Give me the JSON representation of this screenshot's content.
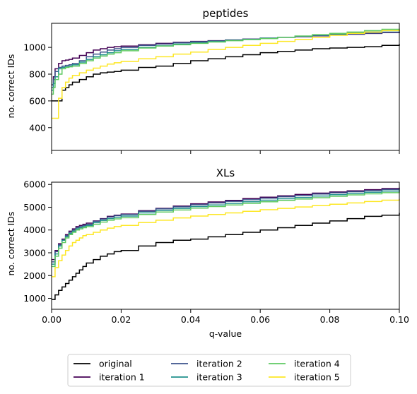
{
  "colors": {
    "original": "#000000",
    "iteration 1": "#440154",
    "iteration 2": "#3b528b",
    "iteration 3": "#21908d",
    "iteration 4": "#5ec962",
    "iteration 5": "#fde725"
  },
  "legend": {
    "placement": "bottom-center",
    "ncol": 3,
    "entries": [
      "original",
      "iteration 1",
      "iteration 2",
      "iteration 3",
      "iteration 4",
      "iteration 5"
    ]
  },
  "chart_data": [
    {
      "type": "line",
      "step": true,
      "title": "peptides",
      "xlabel": "",
      "ylabel": "no. correct IDs",
      "xlim": [
        0,
        0.1
      ],
      "ylim": [
        230,
        1180
      ],
      "xticks": [
        0,
        0.02,
        0.04,
        0.06,
        0.08,
        0.1
      ],
      "xtick_labels_shown": false,
      "yticks": [
        400,
        600,
        800,
        1000
      ],
      "ytick_labels": [
        "400",
        "600",
        "800",
        "1000"
      ],
      "grid": false,
      "series": [
        {
          "name": "original",
          "x": [
            0,
            0.001,
            0.002,
            0.003,
            0.004,
            0.005,
            0.006,
            0.008,
            0.01,
            0.012,
            0.014,
            0.016,
            0.018,
            0.02,
            0.025,
            0.03,
            0.035,
            0.04,
            0.045,
            0.05,
            0.055,
            0.06,
            0.065,
            0.07,
            0.075,
            0.08,
            0.085,
            0.09,
            0.095,
            0.1
          ],
          "y": [
            600,
            600,
            600,
            680,
            700,
            720,
            740,
            760,
            780,
            800,
            810,
            815,
            820,
            830,
            850,
            860,
            880,
            900,
            915,
            930,
            945,
            960,
            970,
            980,
            990,
            995,
            1000,
            1005,
            1015,
            1025
          ]
        },
        {
          "name": "iteration 1",
          "x": [
            0,
            0.0005,
            0.001,
            0.002,
            0.003,
            0.004,
            0.005,
            0.006,
            0.008,
            0.01,
            0.012,
            0.014,
            0.016,
            0.018,
            0.02,
            0.025,
            0.03,
            0.035,
            0.04,
            0.045,
            0.05,
            0.055,
            0.06,
            0.065,
            0.07,
            0.075,
            0.08,
            0.085,
            0.09,
            0.095,
            0.1
          ],
          "y": [
            720,
            780,
            840,
            880,
            900,
            905,
            910,
            920,
            940,
            960,
            980,
            990,
            1000,
            1005,
            1010,
            1020,
            1030,
            1038,
            1045,
            1050,
            1055,
            1062,
            1068,
            1075,
            1080,
            1086,
            1092,
            1098,
            1104,
            1110,
            1115
          ]
        },
        {
          "name": "iteration 2",
          "x": [
            0,
            0.0005,
            0.001,
            0.002,
            0.003,
            0.004,
            0.005,
            0.006,
            0.008,
            0.01,
            0.012,
            0.014,
            0.016,
            0.018,
            0.02,
            0.025,
            0.03,
            0.035,
            0.04,
            0.045,
            0.05,
            0.055,
            0.06,
            0.065,
            0.07,
            0.075,
            0.08,
            0.085,
            0.09,
            0.095,
            0.1
          ],
          "y": [
            700,
            760,
            820,
            850,
            860,
            865,
            870,
            880,
            900,
            930,
            950,
            965,
            980,
            990,
            1000,
            1015,
            1025,
            1035,
            1042,
            1048,
            1055,
            1062,
            1070,
            1076,
            1082,
            1088,
            1095,
            1100,
            1106,
            1112,
            1118
          ]
        },
        {
          "name": "iteration 3",
          "x": [
            0,
            0.0005,
            0.001,
            0.002,
            0.003,
            0.004,
            0.005,
            0.006,
            0.008,
            0.01,
            0.012,
            0.014,
            0.016,
            0.018,
            0.02,
            0.025,
            0.03,
            0.035,
            0.04,
            0.045,
            0.05,
            0.055,
            0.06,
            0.065,
            0.07,
            0.075,
            0.08,
            0.085,
            0.09,
            0.095,
            0.1
          ],
          "y": [
            680,
            730,
            780,
            840,
            850,
            855,
            860,
            870,
            890,
            910,
            930,
            945,
            960,
            975,
            985,
            1000,
            1012,
            1025,
            1035,
            1045,
            1052,
            1060,
            1068,
            1076,
            1084,
            1092,
            1100,
            1108,
            1116,
            1124,
            1130
          ]
        },
        {
          "name": "iteration 4",
          "x": [
            0,
            0.0005,
            0.001,
            0.002,
            0.003,
            0.004,
            0.005,
            0.006,
            0.008,
            0.01,
            0.012,
            0.014,
            0.016,
            0.018,
            0.02,
            0.025,
            0.03,
            0.035,
            0.04,
            0.045,
            0.05,
            0.055,
            0.06,
            0.065,
            0.07,
            0.075,
            0.08,
            0.085,
            0.09,
            0.095,
            0.1
          ],
          "y": [
            650,
            700,
            760,
            800,
            840,
            850,
            855,
            860,
            880,
            900,
            920,
            935,
            950,
            960,
            975,
            995,
            1010,
            1020,
            1030,
            1040,
            1050,
            1058,
            1066,
            1075,
            1085,
            1095,
            1105,
            1115,
            1125,
            1135,
            1140
          ]
        },
        {
          "name": "iteration 5",
          "x": [
            0,
            0.0005,
            0.001,
            0.002,
            0.003,
            0.004,
            0.005,
            0.006,
            0.008,
            0.01,
            0.012,
            0.014,
            0.016,
            0.018,
            0.02,
            0.025,
            0.03,
            0.035,
            0.04,
            0.045,
            0.05,
            0.055,
            0.06,
            0.065,
            0.07,
            0.075,
            0.08,
            0.085,
            0.09,
            0.095,
            0.1
          ],
          "y": [
            470,
            470,
            470,
            620,
            700,
            740,
            770,
            790,
            810,
            830,
            845,
            860,
            875,
            885,
            895,
            915,
            930,
            950,
            965,
            985,
            1000,
            1015,
            1030,
            1045,
            1060,
            1075,
            1090,
            1105,
            1115,
            1125,
            1135
          ]
        }
      ]
    },
    {
      "type": "line",
      "step": true,
      "title": "XLs",
      "xlabel": "q-value",
      "ylabel": "no. correct IDs",
      "xlim": [
        0,
        0.1
      ],
      "ylim": [
        520,
        6100
      ],
      "xticks": [
        0,
        0.02,
        0.04,
        0.06,
        0.08,
        0.1
      ],
      "xtick_labels": [
        "0.00",
        "0.02",
        "0.04",
        "0.06",
        "0.08",
        "0.10"
      ],
      "yticks": [
        1000,
        2000,
        3000,
        4000,
        5000,
        6000
      ],
      "ytick_labels": [
        "1000",
        "2000",
        "3000",
        "4000",
        "5000",
        "6000"
      ],
      "grid": false,
      "series": [
        {
          "name": "original",
          "x": [
            0,
            0.001,
            0.002,
            0.003,
            0.004,
            0.005,
            0.006,
            0.007,
            0.008,
            0.009,
            0.01,
            0.012,
            0.014,
            0.016,
            0.018,
            0.02,
            0.025,
            0.03,
            0.035,
            0.04,
            0.045,
            0.05,
            0.055,
            0.06,
            0.065,
            0.07,
            0.075,
            0.08,
            0.085,
            0.09,
            0.095,
            0.1
          ],
          "y": [
            950,
            1150,
            1350,
            1500,
            1650,
            1800,
            1950,
            2100,
            2250,
            2400,
            2550,
            2700,
            2850,
            2950,
            3050,
            3100,
            3300,
            3450,
            3550,
            3600,
            3700,
            3800,
            3900,
            4000,
            4100,
            4200,
            4300,
            4400,
            4500,
            4600,
            4650,
            4750
          ]
        },
        {
          "name": "iteration 1",
          "x": [
            0,
            0.001,
            0.002,
            0.003,
            0.004,
            0.005,
            0.006,
            0.007,
            0.008,
            0.009,
            0.01,
            0.012,
            0.014,
            0.016,
            0.018,
            0.02,
            0.025,
            0.03,
            0.035,
            0.04,
            0.045,
            0.05,
            0.055,
            0.06,
            0.065,
            0.07,
            0.075,
            0.08,
            0.085,
            0.09,
            0.095,
            0.1
          ],
          "y": [
            2700,
            3100,
            3400,
            3600,
            3800,
            3950,
            4050,
            4150,
            4200,
            4250,
            4300,
            4400,
            4500,
            4600,
            4650,
            4700,
            4850,
            4950,
            5050,
            5150,
            5230,
            5300,
            5380,
            5440,
            5500,
            5560,
            5620,
            5670,
            5720,
            5770,
            5820,
            5860
          ]
        },
        {
          "name": "iteration 2",
          "x": [
            0,
            0.001,
            0.002,
            0.003,
            0.004,
            0.005,
            0.006,
            0.007,
            0.008,
            0.009,
            0.01,
            0.012,
            0.014,
            0.016,
            0.018,
            0.02,
            0.025,
            0.03,
            0.035,
            0.04,
            0.045,
            0.05,
            0.055,
            0.06,
            0.065,
            0.07,
            0.075,
            0.08,
            0.085,
            0.09,
            0.095,
            0.1
          ],
          "y": [
            2600,
            3050,
            3350,
            3550,
            3750,
            3900,
            4000,
            4100,
            4150,
            4200,
            4250,
            4380,
            4480,
            4570,
            4630,
            4680,
            4820,
            4930,
            5020,
            5110,
            5190,
            5260,
            5330,
            5400,
            5460,
            5520,
            5580,
            5630,
            5680,
            5730,
            5780,
            5820
          ]
        },
        {
          "name": "iteration 3",
          "x": [
            0,
            0.001,
            0.002,
            0.003,
            0.004,
            0.005,
            0.006,
            0.007,
            0.008,
            0.009,
            0.01,
            0.012,
            0.014,
            0.016,
            0.018,
            0.02,
            0.025,
            0.03,
            0.035,
            0.04,
            0.045,
            0.05,
            0.055,
            0.06,
            0.065,
            0.07,
            0.075,
            0.08,
            0.085,
            0.09,
            0.095,
            0.1
          ],
          "y": [
            2500,
            2950,
            3300,
            3550,
            3700,
            3850,
            3950,
            4050,
            4100,
            4150,
            4200,
            4320,
            4420,
            4500,
            4560,
            4610,
            4750,
            4860,
            4950,
            5030,
            5100,
            5170,
            5240,
            5310,
            5370,
            5430,
            5490,
            5550,
            5610,
            5660,
            5710,
            5760
          ]
        },
        {
          "name": "iteration 4",
          "x": [
            0,
            0.001,
            0.002,
            0.003,
            0.004,
            0.005,
            0.006,
            0.007,
            0.008,
            0.009,
            0.01,
            0.012,
            0.014,
            0.016,
            0.018,
            0.02,
            0.025,
            0.03,
            0.035,
            0.04,
            0.045,
            0.05,
            0.055,
            0.06,
            0.065,
            0.07,
            0.075,
            0.08,
            0.085,
            0.09,
            0.095,
            0.1
          ],
          "y": [
            2400,
            2850,
            3200,
            3450,
            3650,
            3800,
            3900,
            4000,
            4050,
            4100,
            4150,
            4250,
            4350,
            4430,
            4490,
            4540,
            4680,
            4790,
            4880,
            4960,
            5030,
            5100,
            5170,
            5240,
            5300,
            5360,
            5420,
            5480,
            5540,
            5590,
            5640,
            5690
          ]
        },
        {
          "name": "iteration 5",
          "x": [
            0,
            0.001,
            0.002,
            0.003,
            0.004,
            0.005,
            0.006,
            0.007,
            0.008,
            0.009,
            0.01,
            0.012,
            0.014,
            0.016,
            0.018,
            0.02,
            0.025,
            0.03,
            0.035,
            0.04,
            0.045,
            0.05,
            0.055,
            0.06,
            0.065,
            0.07,
            0.075,
            0.08,
            0.085,
            0.09,
            0.095,
            0.1
          ],
          "y": [
            1950,
            2350,
            2650,
            2900,
            3100,
            3300,
            3450,
            3550,
            3650,
            3750,
            3800,
            3900,
            4000,
            4080,
            4150,
            4200,
            4330,
            4430,
            4530,
            4610,
            4680,
            4750,
            4820,
            4890,
            4950,
            5010,
            5070,
            5130,
            5190,
            5250,
            5310,
            5360
          ]
        }
      ]
    }
  ]
}
